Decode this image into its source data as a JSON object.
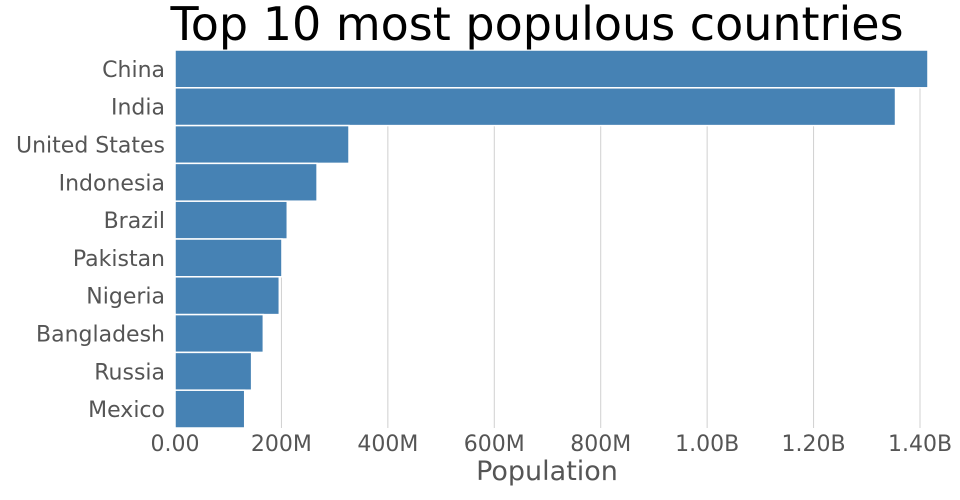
{
  "chart_data": {
    "type": "bar",
    "orientation": "horizontal",
    "title": "Top 10 most populous countries",
    "xlabel": "Population",
    "ylabel": "",
    "categories": [
      "China",
      "India",
      "United States",
      "Indonesia",
      "Brazil",
      "Pakistan",
      "Nigeria",
      "Bangladesh",
      "Russia",
      "Mexico"
    ],
    "values": [
      1415000000,
      1354000000,
      327000000,
      267000000,
      211000000,
      201000000,
      196000000,
      166000000,
      144000000,
      131000000
    ],
    "xlim": [
      0,
      1400000000
    ],
    "xticks": [
      0,
      200000000,
      400000000,
      600000000,
      800000000,
      1000000000,
      1200000000,
      1400000000
    ],
    "xtick_labels": [
      "0.00",
      "200M",
      "400M",
      "600M",
      "800M",
      "1.00B",
      "1.20B",
      "1.40B"
    ],
    "grid": "vertical",
    "legend": "none",
    "bar_color": "#4682b4"
  }
}
